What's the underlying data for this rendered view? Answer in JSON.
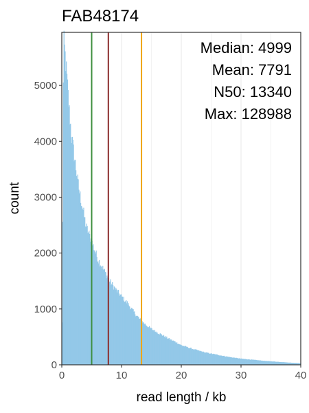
{
  "chart_data": {
    "type": "bar",
    "title": "FAB48174",
    "xlabel": "read length / kb",
    "ylabel": "count",
    "xlim": [
      0,
      40
    ],
    "ylim": [
      0,
      5950
    ],
    "x_ticks": [
      0,
      10,
      20,
      30,
      40
    ],
    "y_ticks": [
      0,
      1000,
      2000,
      3000,
      4000,
      5000
    ],
    "x_minor_gridlines": [
      5,
      15,
      25,
      35
    ],
    "grid": "vertical",
    "bar_color": "#93c8e8",
    "bin_width_kb": 0.1,
    "histogram_profile": {
      "x": [
        0.0,
        0.1,
        0.2,
        0.3,
        0.5,
        0.8,
        1.2,
        1.6,
        2.0,
        2.5,
        3.0,
        3.5,
        4.0,
        4.5,
        5.0,
        5.5,
        6.0,
        6.5,
        7.0,
        7.5,
        8.0,
        9.0,
        10.0,
        11.0,
        12.0,
        13.0,
        14.0,
        15.0,
        16.0,
        17.0,
        18.0,
        19.0,
        20.0,
        22.0,
        24.0,
        26.0,
        28.0,
        30.0,
        32.0,
        34.0,
        36.0,
        38.0,
        40.0
      ],
      "counts": [
        500,
        1000,
        4200,
        5800,
        5600,
        5200,
        4600,
        4100,
        3800,
        3400,
        3050,
        2800,
        2500,
        2350,
        2200,
        2050,
        1900,
        1800,
        1700,
        1600,
        1500,
        1350,
        1220,
        1100,
        950,
        820,
        720,
        640,
        580,
        520,
        460,
        410,
        350,
        280,
        220,
        180,
        140,
        110,
        90,
        70,
        55,
        40,
        30
      ]
    },
    "stat_lines": [
      {
        "label": "Median",
        "value": 4999,
        "color": "#3e8e3e"
      },
      {
        "label": "Mean",
        "value": 7791,
        "color": "#8b2b2b"
      },
      {
        "label": "N50",
        "value": 13340,
        "color": "#f0a500"
      }
    ],
    "annotations": {
      "median": "Median: 4999",
      "mean": "Mean: 7791",
      "n50": "N50: 13340",
      "max": "Max: 128988"
    }
  }
}
